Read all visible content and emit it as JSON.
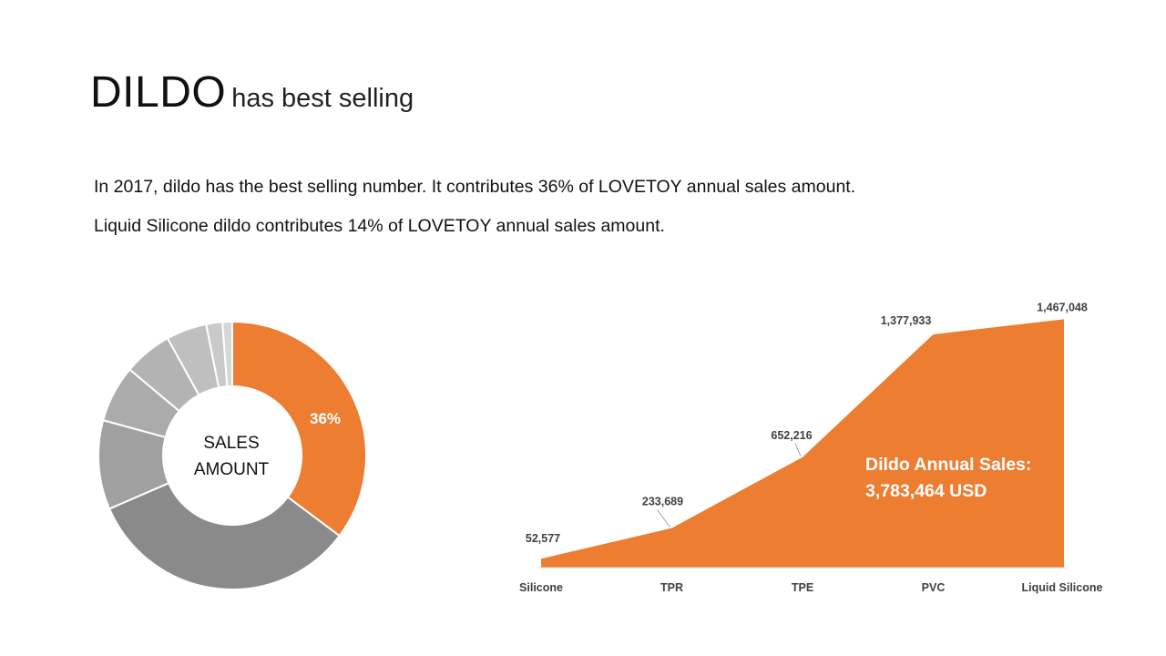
{
  "header": {
    "title_main": "DILDO",
    "title_sub": "has best selling"
  },
  "body": {
    "line1": "In 2017, dildo has the best selling number. It contributes 36% of LOVETOY annual sales amount.",
    "line2": "Liquid Silicone dildo contributes 14% of LOVETOY annual sales amount."
  },
  "colors": {
    "accent": "#ED7D31",
    "grey_dark": "#7F7F7F",
    "grey_mid": "#A5A5A5",
    "grey_light": "#D9D9D9"
  },
  "chart_data": [
    {
      "type": "pie",
      "style": "donut",
      "center_label_line1": "SALES",
      "center_label_line2": "AMOUNT",
      "highlight_label": "36%",
      "values": [
        36,
        34,
        11,
        7,
        6,
        5,
        2,
        1.2
      ],
      "slice_colors": [
        "#ED7D31",
        "#8A8A8A",
        "#A0A0A0",
        "#ABABAB",
        "#B3B3B3",
        "#BFBFBF",
        "#CACACA",
        "#D6D6D6"
      ]
    },
    {
      "type": "area",
      "categories": [
        "Silicone",
        "TPR",
        "TPE",
        "PVC",
        "Liquid Silicone"
      ],
      "values": [
        52577,
        233689,
        652216,
        1377933,
        1467048
      ],
      "value_labels": [
        "52,577",
        "233,689",
        "652,216",
        "1,377,933",
        "1,467,048"
      ],
      "annotation_line1": "Dildo Annual Sales:",
      "annotation_line2": "3,783,464 USD",
      "ylim": [
        0,
        1550000
      ]
    }
  ]
}
